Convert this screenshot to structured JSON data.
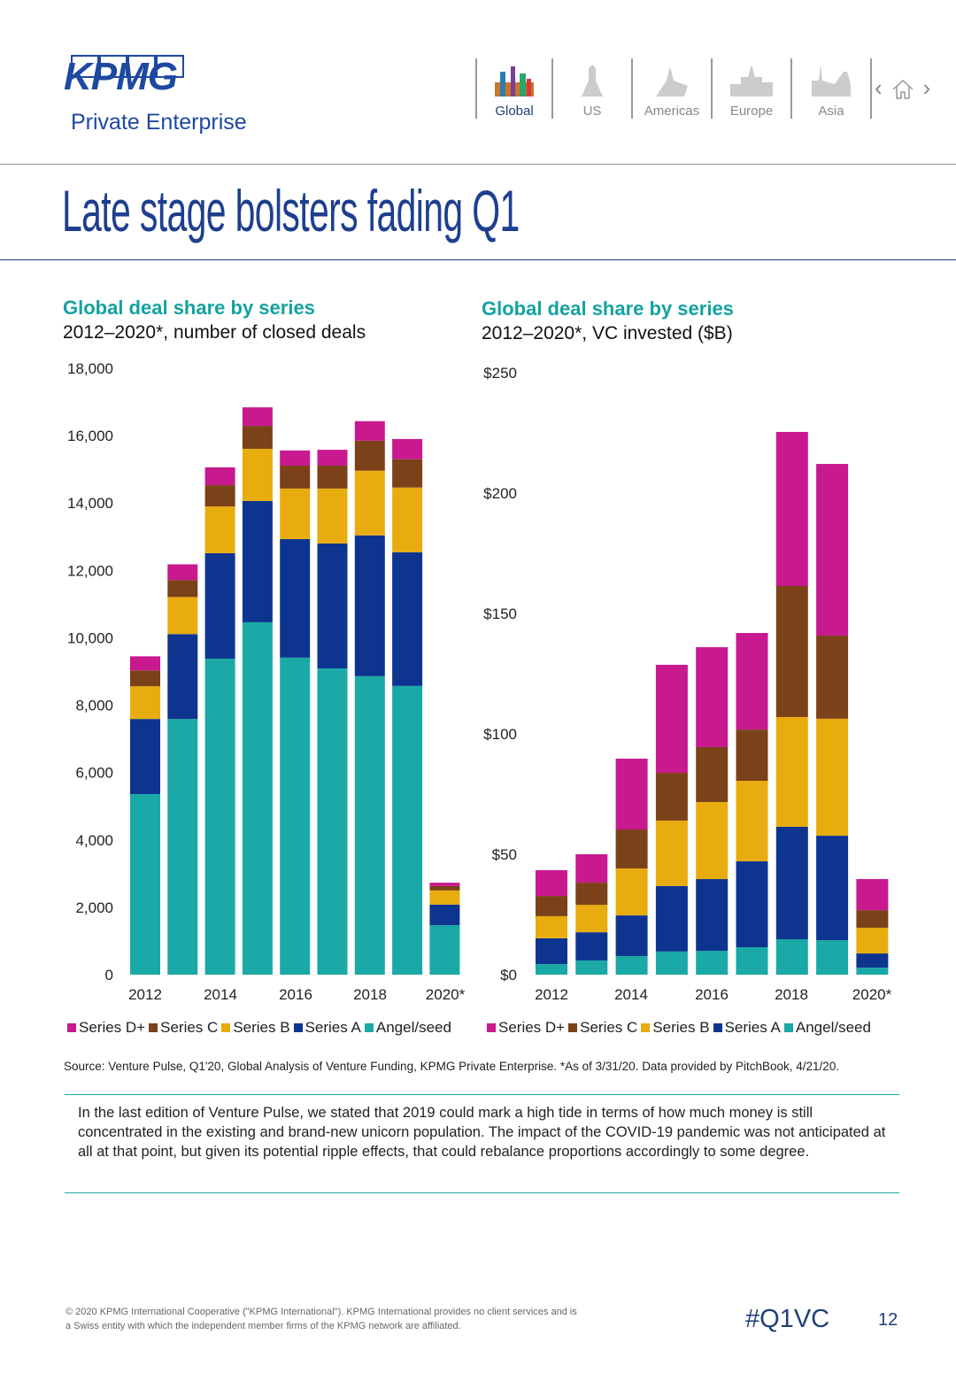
{
  "header": {
    "logo": "KPMG",
    "logo_sub": "Private Enterprise",
    "nav": [
      {
        "label": "Global",
        "active": true
      },
      {
        "label": "US"
      },
      {
        "label": "Americas"
      },
      {
        "label": "Europe"
      },
      {
        "label": "Asia"
      }
    ],
    "icons": [
      "chevron-left-icon",
      "home-icon",
      "chevron-right-icon"
    ]
  },
  "page_title": "Late stage bolsters fading Q1",
  "colors": {
    "Series D+": "#c8198e",
    "Series C": "#7b4119",
    "Series B": "#e8ac0e",
    "Series A": "#0d3590",
    "Angel/seed": "#1aa9a6"
  },
  "chart_data": [
    {
      "type": "bar",
      "stacked": true,
      "title": "Global deal share by series",
      "subtitle": "2012–2020*, number of closed deals",
      "categories": [
        "2012",
        "2013",
        "2014",
        "2015",
        "2016",
        "2017",
        "2018",
        "2019",
        "2020*"
      ],
      "x_tick_labels": [
        "2012",
        "2014",
        "2016",
        "2018",
        "2020*"
      ],
      "ylim": [
        0,
        18000
      ],
      "y_ticks": [
        "0",
        "2,000",
        "4,000",
        "6,000",
        "8,000",
        "10,000",
        "12,000",
        "14,000",
        "16,000",
        "18,000"
      ],
      "legend": "bottom",
      "series": [
        {
          "name": "Angel/seed",
          "values": [
            5360,
            7590,
            9380,
            10460,
            9410,
            9090,
            8860,
            8570,
            1470
          ]
        },
        {
          "name": "Series A",
          "values": [
            2230,
            2520,
            3130,
            3600,
            3520,
            3710,
            4180,
            3970,
            610
          ]
        },
        {
          "name": "Series B",
          "values": [
            970,
            1100,
            1390,
            1550,
            1500,
            1630,
            1920,
            1920,
            420
          ]
        },
        {
          "name": "Series C",
          "values": [
            470,
            500,
            630,
            680,
            680,
            680,
            890,
            840,
            130
          ]
        },
        {
          "name": "Series D+",
          "values": [
            420,
            470,
            530,
            550,
            450,
            470,
            580,
            600,
            100
          ]
        }
      ]
    },
    {
      "type": "bar",
      "stacked": true,
      "title": "Global deal share by series",
      "subtitle": "2012–2020*, VC invested ($B)",
      "categories": [
        "2012",
        "2013",
        "2014",
        "2015",
        "2016",
        "2017",
        "2018",
        "2019",
        "2020*"
      ],
      "x_tick_labels": [
        "2012",
        "2014",
        "2016",
        "2018",
        "2020*"
      ],
      "ylim": [
        0,
        250
      ],
      "y_ticks": [
        "$0",
        "$50",
        "$100",
        "$150",
        "$200",
        "$250"
      ],
      "legend": "bottom",
      "series": [
        {
          "name": "Angel/seed",
          "values": [
            4.4,
            5.9,
            7.7,
            9.6,
            9.9,
            11.4,
            14.7,
            14.3,
            2.9
          ]
        },
        {
          "name": "Series A",
          "values": [
            10.7,
            11.7,
            16.9,
            27.2,
            29.8,
            35.7,
            46.7,
            43.4,
            5.9
          ]
        },
        {
          "name": "Series B",
          "values": [
            9.2,
            11.4,
            19.5,
            27.2,
            32.0,
            33.4,
            45.6,
            48.6,
            10.7
          ]
        },
        {
          "name": "Series C",
          "values": [
            8.4,
            9.2,
            16.2,
            19.8,
            22.8,
            21.3,
            54.4,
            34.5,
            7.3
          ]
        },
        {
          "name": "Series D+",
          "values": [
            10.7,
            11.8,
            29.4,
            44.9,
            41.5,
            40.1,
            64.0,
            71.3,
            12.9
          ]
        }
      ]
    }
  ],
  "legend_order": [
    "Series D+",
    "Series C",
    "Series B",
    "Series A",
    "Angel/seed"
  ],
  "source": "Source: Venture Pulse, Q1'20, Global Analysis of Venture Funding, KPMG Private Enterprise. *As of 3/31/20. Data provided by PitchBook, 4/21/20.",
  "commentary": "In the last edition of Venture Pulse, we stated that 2019 could mark a high tide in terms of how much money is still concentrated in the existing and brand-new unicorn population. The impact of the COVID-19 pandemic was not anticipated at all at that point, but given its potential ripple effects, that could rebalance proportions accordingly to some degree.",
  "footer": {
    "copyright": "© 2020 KPMG International Cooperative (\"KPMG International\"). KPMG International provides no client services and is a Swiss entity with which the independent member firms of the KPMG network are affiliated.",
    "hashtag": "#Q1VC",
    "page_number": "12"
  }
}
